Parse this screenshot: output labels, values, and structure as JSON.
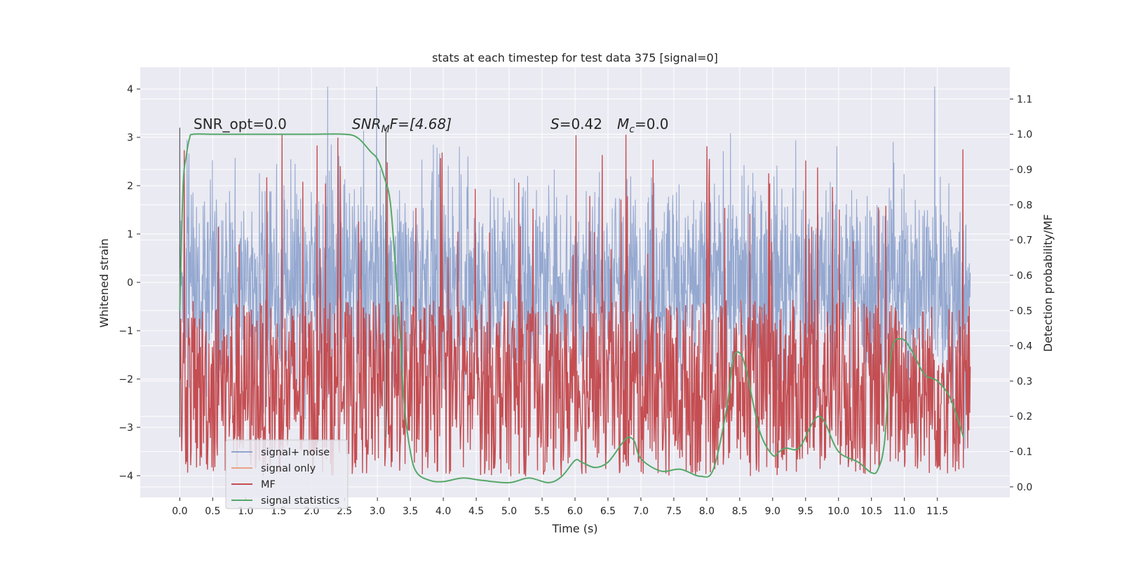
{
  "chart_data": {
    "type": "line",
    "title": "stats at each timestep for test data 375 [signal=0]",
    "xlabel": "Time (s)",
    "ylabel_left": "Whitened strain",
    "ylabel_right": "Detection probability/MF",
    "xlim": [
      -0.6,
      12.6
    ],
    "ylim_left": [
      -4.45,
      4.45
    ],
    "ylim_right": [
      -0.03,
      1.19
    ],
    "x_ticks": [
      "0.0",
      "0.5",
      "1.0",
      "1.5",
      "2.0",
      "2.5",
      "3.0",
      "3.5",
      "4.0",
      "4.5",
      "5.0",
      "5.5",
      "6.0",
      "6.5",
      "7.0",
      "7.5",
      "8.0",
      "8.5",
      "9.0",
      "9.5",
      "10.0",
      "10.5",
      "11.0",
      "11.5"
    ],
    "y_ticks_left": [
      "4",
      "3",
      "2",
      "1",
      "0",
      "−1",
      "−2",
      "−3",
      "−4"
    ],
    "y_ticks_right": [
      "1.1",
      "1.0",
      "0.9",
      "0.8",
      "0.7",
      "0.6",
      "0.5",
      "0.4",
      "0.3",
      "0.2",
      "0.1",
      "0.0"
    ],
    "grid": true,
    "legend_position": "lower-left",
    "annotations": {
      "snr_opt": "SNR_opt=0.0",
      "snr_mf_main": "SNR",
      "snr_mf_sub": "M",
      "snr_mf_rest": "F=[4.68]",
      "s_label": "S",
      "s_value": "=0.42",
      "mc_label": "M",
      "mc_sub": "c",
      "mc_value": "=0.0"
    },
    "vertical_markers_x": [
      0.0,
      3.13
    ],
    "series": [
      {
        "name": "signal+ noise",
        "color": "#8fa4cd",
        "axis": "left",
        "kind": "noise",
        "x_range": [
          0.0,
          12.0
        ],
        "spread": 2.3
      },
      {
        "name": "signal only",
        "color": "#e9a385",
        "axis": "left",
        "values": [
          0.0
        ]
      },
      {
        "name": "MF",
        "color": "#c44e52",
        "axis": "left",
        "kind": "mf",
        "x_range": [
          0.0,
          12.0
        ],
        "band": [
          0.0,
          0.6
        ]
      },
      {
        "name": "signal statistics",
        "color": "#55a868",
        "axis": "right",
        "x": [
          0.0,
          0.05,
          0.1,
          0.15,
          0.2,
          0.5,
          1.0,
          1.5,
          2.0,
          2.5,
          2.7,
          2.9,
          3.0,
          3.1,
          3.2,
          3.3,
          3.35,
          3.4,
          3.5,
          3.6,
          3.8,
          4.0,
          4.3,
          4.6,
          5.0,
          5.3,
          5.6,
          5.8,
          6.0,
          6.1,
          6.3,
          6.5,
          6.7,
          6.8,
          6.9,
          7.0,
          7.3,
          7.6,
          7.9,
          8.1,
          8.3,
          8.4,
          8.5,
          8.6,
          8.8,
          9.0,
          9.1,
          9.2,
          9.4,
          9.6,
          9.7,
          9.8,
          10.0,
          10.3,
          10.5,
          10.6,
          10.7,
          10.8,
          10.95,
          11.1,
          11.3,
          11.5,
          11.7,
          11.9
        ],
        "values": [
          0.5,
          0.85,
          0.94,
          0.99,
          1.0,
          1.0,
          1.0,
          1.0,
          1.0,
          1.0,
          0.99,
          0.95,
          0.93,
          0.88,
          0.8,
          0.55,
          0.42,
          0.25,
          0.1,
          0.04,
          0.018,
          0.015,
          0.025,
          0.018,
          0.012,
          0.025,
          0.012,
          0.03,
          0.075,
          0.07,
          0.055,
          0.07,
          0.12,
          0.14,
          0.13,
          0.08,
          0.045,
          0.05,
          0.03,
          0.05,
          0.22,
          0.36,
          0.38,
          0.33,
          0.16,
          0.09,
          0.1,
          0.11,
          0.11,
          0.18,
          0.2,
          0.18,
          0.1,
          0.07,
          0.04,
          0.05,
          0.13,
          0.38,
          0.42,
          0.39,
          0.32,
          0.3,
          0.25,
          0.14
        ]
      }
    ]
  }
}
